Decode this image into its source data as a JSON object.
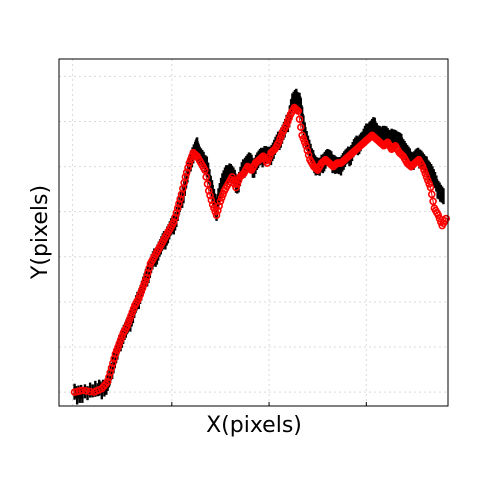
{
  "chart_data": {
    "type": "scatter",
    "title": "",
    "xlabel": "X(pixels)",
    "ylabel": "Y(pixels)",
    "xlim": [
      0,
      100
    ],
    "ylim": [
      0,
      100
    ],
    "xticks_labeled": false,
    "yticks_labeled": false,
    "grid": true,
    "legend": "none",
    "series": [
      {
        "style": "black-filled-markers",
        "color": "#000000",
        "values": [
          [
            4,
            4
          ],
          [
            6,
            4
          ],
          [
            10,
            5
          ],
          [
            12,
            6
          ],
          [
            13,
            8
          ],
          [
            14,
            13
          ],
          [
            15,
            16
          ],
          [
            16,
            20
          ],
          [
            17,
            22
          ],
          [
            18,
            24
          ],
          [
            19,
            27
          ],
          [
            20,
            30
          ],
          [
            21,
            33
          ],
          [
            22,
            36
          ],
          [
            23,
            39
          ],
          [
            24,
            42
          ],
          [
            25,
            44
          ],
          [
            26,
            46
          ],
          [
            27,
            48
          ],
          [
            28,
            50
          ],
          [
            29,
            52
          ],
          [
            30,
            54
          ],
          [
            31,
            58
          ],
          [
            32,
            62
          ],
          [
            33,
            67
          ],
          [
            34,
            72
          ],
          [
            35,
            74
          ],
          [
            35.5,
            75
          ],
          [
            36,
            73
          ],
          [
            37,
            71
          ],
          [
            38,
            70
          ],
          [
            39,
            64
          ],
          [
            40,
            60
          ],
          [
            40.5,
            56
          ],
          [
            41,
            61
          ],
          [
            42,
            65
          ],
          [
            43,
            67
          ],
          [
            44,
            68
          ],
          [
            45,
            66
          ],
          [
            46,
            64
          ],
          [
            47,
            68
          ],
          [
            48,
            70
          ],
          [
            49,
            71
          ],
          [
            50,
            69
          ],
          [
            51,
            71
          ],
          [
            52,
            72
          ],
          [
            53,
            73
          ],
          [
            54,
            72
          ],
          [
            55,
            74
          ],
          [
            56,
            76
          ],
          [
            57,
            78
          ],
          [
            58,
            80
          ],
          [
            59,
            83
          ],
          [
            60,
            88
          ],
          [
            61,
            89
          ],
          [
            62,
            88
          ],
          [
            63,
            80
          ],
          [
            64,
            76
          ],
          [
            65,
            72
          ],
          [
            66,
            70
          ],
          [
            67,
            69
          ],
          [
            68,
            71
          ],
          [
            69,
            72
          ],
          [
            70,
            71
          ],
          [
            71,
            70
          ],
          [
            72,
            69
          ],
          [
            73,
            71
          ],
          [
            74,
            72
          ],
          [
            75,
            73
          ],
          [
            76,
            75
          ],
          [
            77,
            76
          ],
          [
            78,
            77
          ],
          [
            79,
            79
          ],
          [
            80,
            80
          ],
          [
            81,
            81
          ],
          [
            82,
            79
          ],
          [
            83,
            78
          ],
          [
            84,
            79
          ],
          [
            85,
            77
          ],
          [
            86,
            78
          ],
          [
            87,
            77
          ],
          [
            88,
            76
          ],
          [
            89,
            74
          ],
          [
            90,
            72
          ],
          [
            91,
            71
          ],
          [
            92,
            72
          ],
          [
            93,
            72
          ],
          [
            94,
            70
          ],
          [
            95,
            69
          ],
          [
            96,
            67
          ],
          [
            97,
            64
          ],
          [
            98,
            62
          ],
          [
            99,
            60
          ]
        ]
      },
      {
        "style": "red-open-circles",
        "color": "#ff0000",
        "values": [
          [
            4,
            4
          ],
          [
            6,
            4.5
          ],
          [
            9,
            4
          ],
          [
            11,
            5
          ],
          [
            12.5,
            7
          ],
          [
            13.5,
            11
          ],
          [
            14.5,
            15
          ],
          [
            15.5,
            18
          ],
          [
            16.5,
            21
          ],
          [
            17.5,
            23
          ],
          [
            18.5,
            26
          ],
          [
            19.5,
            29
          ],
          [
            20.5,
            31
          ],
          [
            21.5,
            34
          ],
          [
            22.5,
            37
          ],
          [
            23.5,
            41
          ],
          [
            24.5,
            43
          ],
          [
            25.5,
            45
          ],
          [
            26.5,
            47
          ],
          [
            27.5,
            49
          ],
          [
            28.5,
            51
          ],
          [
            29.5,
            53
          ],
          [
            30.5,
            57
          ],
          [
            31.5,
            61
          ],
          [
            32.5,
            66
          ],
          [
            33.5,
            70
          ],
          [
            34.5,
            73
          ],
          [
            35.5,
            72
          ],
          [
            36.5,
            70
          ],
          [
            37.5,
            68
          ],
          [
            38.5,
            62
          ],
          [
            39.5,
            58
          ],
          [
            40.5,
            55
          ],
          [
            41.5,
            59
          ],
          [
            42.5,
            62
          ],
          [
            43.5,
            64
          ],
          [
            44.5,
            66
          ],
          [
            45.5,
            63
          ],
          [
            46.5,
            66
          ],
          [
            47.5,
            67
          ],
          [
            48.5,
            69
          ],
          [
            49.5,
            68
          ],
          [
            50.5,
            70
          ],
          [
            51.5,
            71
          ],
          [
            52.5,
            72
          ],
          [
            53.5,
            70
          ],
          [
            54.5,
            73
          ],
          [
            55.5,
            74
          ],
          [
            56.5,
            76
          ],
          [
            57.5,
            79
          ],
          [
            58.5,
            81
          ],
          [
            59.5,
            84
          ],
          [
            60.5,
            86
          ],
          [
            61.5,
            85
          ],
          [
            62.5,
            78
          ],
          [
            63.5,
            75
          ],
          [
            64.5,
            71
          ],
          [
            65.5,
            69
          ],
          [
            66.5,
            68
          ],
          [
            67.5,
            70
          ],
          [
            68.5,
            71
          ],
          [
            69.5,
            70
          ],
          [
            70.5,
            69
          ],
          [
            71.5,
            70
          ],
          [
            72.5,
            70
          ],
          [
            73.5,
            71
          ],
          [
            74.5,
            72
          ],
          [
            75.5,
            73
          ],
          [
            76.5,
            74
          ],
          [
            77.5,
            75
          ],
          [
            78.5,
            76
          ],
          [
            79.5,
            77
          ],
          [
            80.5,
            78
          ],
          [
            81.5,
            77
          ],
          [
            82.5,
            76
          ],
          [
            83.5,
            75
          ],
          [
            84.5,
            76
          ],
          [
            85.5,
            74
          ],
          [
            86.5,
            75
          ],
          [
            87.5,
            73
          ],
          [
            88.5,
            72
          ],
          [
            89.5,
            70
          ],
          [
            90.5,
            69
          ],
          [
            91.5,
            70
          ],
          [
            92.5,
            71
          ],
          [
            93.5,
            69
          ],
          [
            94.5,
            66
          ],
          [
            95.5,
            63
          ],
          [
            96.5,
            57
          ],
          [
            97.5,
            55
          ],
          [
            98.5,
            52
          ],
          [
            99.5,
            54
          ]
        ]
      }
    ]
  }
}
